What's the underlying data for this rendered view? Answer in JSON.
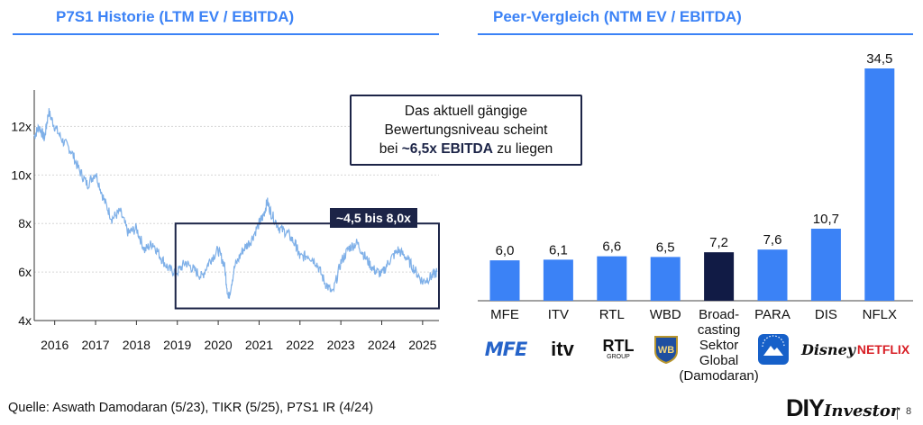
{
  "left_panel": {
    "title": "P7S1 Historie (LTM EV / EBITDA)",
    "callout": {
      "line1": "Das aktuell gängige",
      "line2": "Bewertungsniveau scheint",
      "line3_pre": "bei ",
      "line3_bold": "~6,5x EBITDA",
      "line3_post": " zu liegen"
    },
    "range_label": "~4,5 bis 8,0x"
  },
  "right_panel": {
    "title": "Peer-Vergleich (NTM EV / EBITDA)"
  },
  "chart_data": [
    {
      "type": "line",
      "title": "P7S1 Historie (LTM EV / EBITDA)",
      "xlabel": "",
      "ylabel": "",
      "x_ticks": [
        "2016",
        "2017",
        "2018",
        "2019",
        "2020",
        "2021",
        "2022",
        "2023",
        "2024",
        "2025"
      ],
      "y_ticks": [
        "4x",
        "6x",
        "8x",
        "10x",
        "12x"
      ],
      "xlim": [
        2015.5,
        2025.4
      ],
      "ylim": [
        4,
        13.5
      ],
      "grid": true,
      "series": [
        {
          "x": [
            2015.5,
            2015.62,
            2015.75,
            2015.85,
            2016.0,
            2016.2,
            2016.4,
            2016.6,
            2016.8,
            2017.0,
            2017.2,
            2017.4,
            2017.6,
            2017.8,
            2018.0,
            2018.2,
            2018.4,
            2018.6,
            2018.8,
            2019.0,
            2019.2,
            2019.4,
            2019.6,
            2019.8,
            2020.0,
            2020.15,
            2020.25,
            2020.4,
            2020.6,
            2020.8,
            2021.0,
            2021.1,
            2021.2,
            2021.3,
            2021.5,
            2021.7,
            2021.9,
            2022.0,
            2022.2,
            2022.4,
            2022.6,
            2022.8,
            2023.0,
            2023.2,
            2023.4,
            2023.6,
            2023.8,
            2024.0,
            2024.2,
            2024.4,
            2024.6,
            2024.8,
            2025.0,
            2025.2,
            2025.35
          ],
          "y": [
            11.6,
            12.0,
            11.5,
            12.6,
            12.0,
            11.4,
            11.0,
            10.2,
            9.6,
            10.1,
            9.0,
            8.2,
            8.5,
            7.6,
            7.8,
            6.9,
            7.2,
            6.6,
            6.1,
            6.0,
            6.4,
            6.1,
            5.8,
            6.5,
            6.9,
            6.3,
            4.9,
            6.2,
            6.9,
            7.3,
            8.0,
            8.3,
            8.9,
            8.4,
            7.8,
            7.6,
            7.1,
            6.6,
            6.7,
            6.4,
            5.6,
            5.1,
            6.4,
            7.0,
            7.2,
            6.6,
            6.1,
            5.9,
            6.5,
            6.9,
            6.6,
            6.1,
            5.6,
            5.8,
            6.0
          ]
        }
      ],
      "highlight_box": {
        "x0": 2019.0,
        "x1": 2025.4,
        "y0": 4.5,
        "y1": 8.0
      }
    },
    {
      "type": "bar",
      "title": "Peer-Vergleich (NTM EV / EBITDA)",
      "categories": [
        "MFE",
        "ITV",
        "RTL",
        "WBD",
        "Broad-casting Sektor Global (Damodaran)",
        "PARA",
        "DIS",
        "NFLX"
      ],
      "category_lines": [
        [
          "MFE"
        ],
        [
          "ITV"
        ],
        [
          "RTL"
        ],
        [
          "WBD"
        ],
        [
          "Broad-",
          "casting",
          "Sektor",
          "Global",
          "(Damodaran)"
        ],
        [
          "PARA"
        ],
        [
          "DIS"
        ],
        [
          "NFLX"
        ]
      ],
      "value_labels": [
        "6,0",
        "6,1",
        "6,6",
        "6,5",
        "7,2",
        "7,6",
        "10,7",
        "34,5"
      ],
      "values": [
        6.0,
        6.1,
        6.6,
        6.5,
        7.2,
        7.6,
        10.7,
        34.5
      ],
      "colors": [
        "#3b82f6",
        "#3b82f6",
        "#3b82f6",
        "#3b82f6",
        "#111b45",
        "#3b82f6",
        "#3b82f6",
        "#3b82f6"
      ],
      "ylim": [
        0,
        34.5
      ]
    }
  ],
  "logos": [
    {
      "name": "mfe-logo",
      "text": "MFE"
    },
    {
      "name": "itv-logo",
      "text": "itv"
    },
    {
      "name": "rtl-logo",
      "text": "RTL",
      "sub": "GROUP"
    },
    {
      "name": "wb-logo",
      "text": "WB"
    },
    {
      "name": "paramount-logo",
      "text": ""
    },
    {
      "name": "disney-logo",
      "text": "Disney"
    },
    {
      "name": "netflix-logo",
      "text": "NETFLIX"
    }
  ],
  "footer": {
    "source": "Quelle: Aswath Damodaran (5/23), TIKR (5/25), P7S1 IR (4/24)",
    "brand_bold": "DIY",
    "brand_script": "Investor",
    "page": "8"
  }
}
